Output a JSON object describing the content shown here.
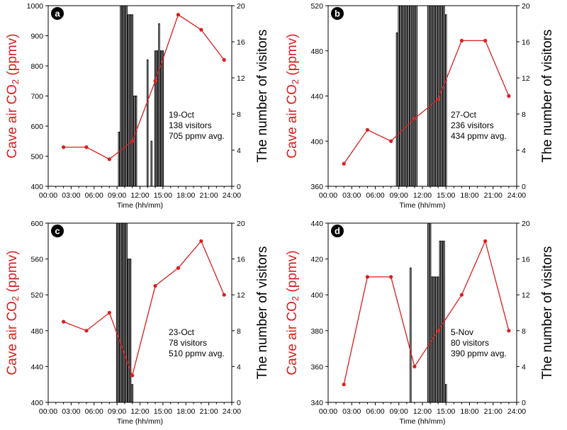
{
  "colors": {
    "co2_line": "#d81e1e",
    "bars": "#000000",
    "axis": "#000000"
  },
  "chart_data": [
    {
      "type": "bar+line",
      "panel_label": "a",
      "xlabel": "Time (hh/mm)",
      "ylabel_left": "Cave air CO2 (ppmv)",
      "ylabel_right": "The number of visitors",
      "x_ticks": [
        "00:00",
        "03:00",
        "06:00",
        "09:00",
        "12:00",
        "15:00",
        "18:00",
        "21:00",
        "24:00"
      ],
      "xlim": [
        0,
        24
      ],
      "ylim_left": [
        400,
        1000
      ],
      "yticks_left": [
        400,
        500,
        600,
        700,
        800,
        900,
        1000
      ],
      "ylim_right": [
        0,
        20
      ],
      "yticks_right": [
        0,
        4,
        8,
        12,
        16,
        20
      ],
      "annotation": [
        "19-Oct",
        "138 visitors",
        "705 ppmv avg."
      ],
      "co2_series": {
        "x": [
          2,
          5,
          8,
          11,
          14,
          17,
          20,
          23
        ],
        "y": [
          530,
          530,
          490,
          550,
          750,
          970,
          920,
          820
        ]
      },
      "visitor_bars": {
        "x": [
          9.25,
          9.5,
          9.75,
          10.0,
          10.25,
          10.5,
          10.75,
          11.0,
          11.25,
          11.5,
          13.0,
          13.5,
          14.0,
          14.25,
          14.5,
          14.75,
          15.0
        ],
        "values": [
          6,
          20,
          20,
          20,
          20,
          19,
          19,
          19,
          10,
          10,
          14,
          5,
          15,
          15,
          18,
          15,
          15
        ]
      }
    },
    {
      "type": "bar+line",
      "panel_label": "b",
      "xlabel": "Time (hh/mm)",
      "ylabel_left": "Cave air CO2 (ppmv)",
      "ylabel_right": "The number of visitors",
      "x_ticks": [
        "00:00",
        "03:00",
        "06:00",
        "09:00",
        "12:00",
        "15:00",
        "18:00",
        "21:00",
        "24:00"
      ],
      "xlim": [
        0,
        24
      ],
      "ylim_left": [
        360,
        520
      ],
      "yticks_left": [
        360,
        400,
        440,
        480,
        520
      ],
      "ylim_right": [
        0,
        20
      ],
      "yticks_right": [
        0,
        4,
        8,
        12,
        16,
        20
      ],
      "annotation": [
        "27-Oct",
        "236 visitors",
        "434 ppmv avg."
      ],
      "co2_series": {
        "x": [
          2,
          5,
          8,
          11,
          14,
          17,
          20,
          23
        ],
        "y": [
          380,
          410,
          400,
          420,
          437,
          489,
          489,
          440
        ]
      },
      "visitor_bars": {
        "x": [
          8.75,
          9.0,
          9.25,
          9.5,
          9.75,
          10.0,
          10.25,
          10.5,
          10.75,
          11.0,
          11.25,
          12.75,
          13.0,
          13.25,
          13.5,
          13.75,
          14.0,
          14.25,
          14.5,
          14.75,
          15.0
        ],
        "values": [
          17,
          20,
          20,
          20,
          20,
          20,
          20,
          20,
          20,
          20,
          20,
          20,
          20,
          20,
          20,
          20,
          20,
          20,
          20,
          20,
          19
        ]
      }
    },
    {
      "type": "bar+line",
      "panel_label": "c",
      "xlabel": "Time (hh/mm)",
      "ylabel_left": "Cave air CO2 (ppmv)",
      "ylabel_right": "The number of visitors",
      "x_ticks": [
        "00:00",
        "03:00",
        "06:00",
        "09:00",
        "12:00",
        "15:00",
        "18:00",
        "21:00",
        "24:00"
      ],
      "xlim": [
        0,
        24
      ],
      "ylim_left": [
        400,
        600
      ],
      "yticks_left": [
        400,
        440,
        480,
        520,
        560,
        600
      ],
      "ylim_right": [
        0,
        20
      ],
      "yticks_right": [
        0,
        4,
        8,
        12,
        16,
        20
      ],
      "annotation": [
        "23-Oct",
        "78 visitors",
        "510 ppmv avg."
      ],
      "co2_series": {
        "x": [
          2,
          5,
          8,
          11,
          14,
          17,
          20,
          23
        ],
        "y": [
          490,
          480,
          500,
          430,
          530,
          550,
          580,
          520
        ]
      },
      "visitor_bars": {
        "x": [
          9.0,
          9.25,
          9.5,
          9.75,
          10.0,
          10.25,
          10.5,
          10.75,
          11.0
        ],
        "values": [
          20,
          20,
          20,
          20,
          20,
          20,
          16,
          16,
          2
        ]
      }
    },
    {
      "type": "bar+line",
      "panel_label": "d",
      "xlabel": "Time (hh/mm)",
      "ylabel_left": "Cave air CO2 (ppmv)",
      "ylabel_right": "The number of visitors",
      "x_ticks": [
        "00:00",
        "03:00",
        "06:00",
        "09:00",
        "12:00",
        "15:00",
        "18:00",
        "21:00",
        "24:00"
      ],
      "xlim": [
        0,
        24
      ],
      "ylim_left": [
        340,
        440
      ],
      "yticks_left": [
        340,
        360,
        380,
        400,
        420,
        440
      ],
      "ylim_right": [
        0,
        20
      ],
      "yticks_right": [
        0,
        4,
        8,
        12,
        16,
        20
      ],
      "annotation": [
        "5-Nov",
        "80 visitors",
        "390 ppmv avg."
      ],
      "co2_series": {
        "x": [
          2,
          5,
          8,
          11,
          14,
          17,
          20,
          23
        ],
        "y": [
          350,
          410,
          410,
          360,
          380,
          400,
          430,
          380
        ]
      },
      "visitor_bars": {
        "x": [
          10.5,
          12.75,
          13.0,
          13.25,
          13.5,
          13.75,
          14.0,
          14.25,
          14.5,
          14.75,
          15.0
        ],
        "values": [
          15,
          20,
          20,
          14,
          14,
          14,
          14,
          18,
          18,
          18,
          2
        ]
      }
    }
  ]
}
